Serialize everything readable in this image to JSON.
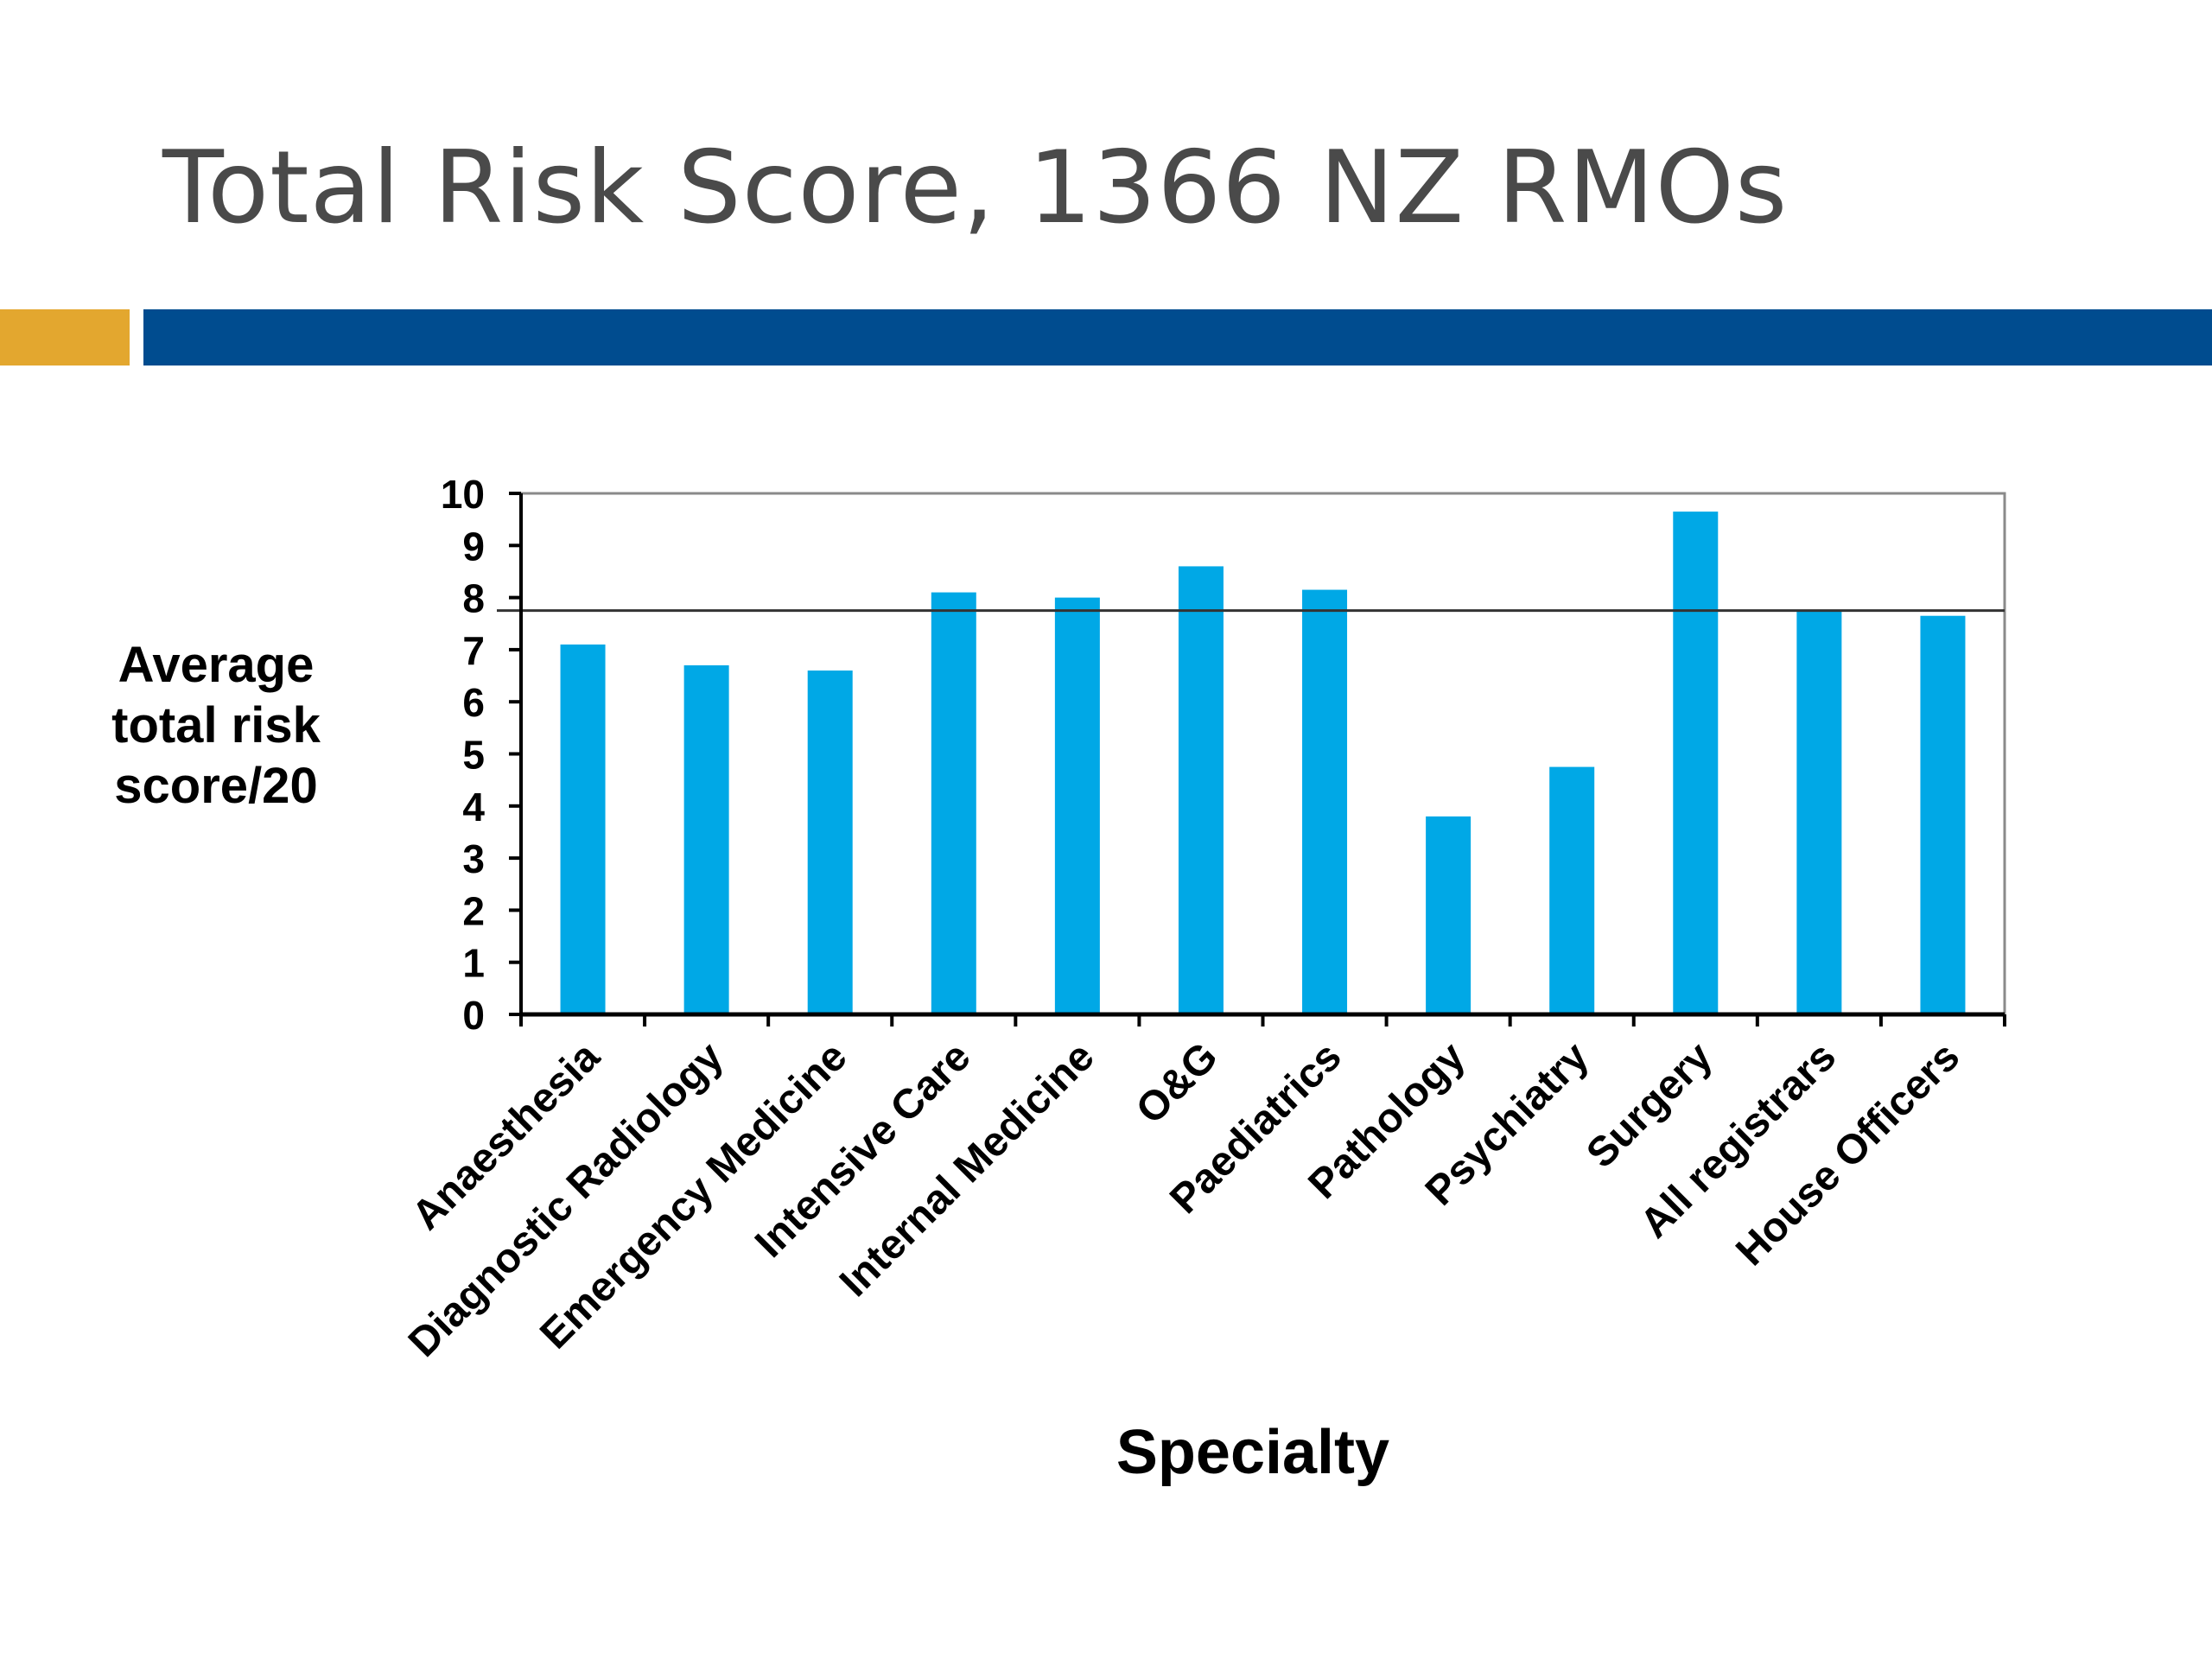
{
  "title": "Total Risk Score, 1366 NZ RMOs",
  "colors": {
    "accent_orange": "#E3A72F",
    "accent_blue": "#004C8F",
    "bar": "#00A8E6"
  },
  "chart_data": {
    "type": "bar",
    "categories": [
      "Anaesthesia",
      "Diagnostic Radiology",
      "Emergency Medicine",
      "Intensive Care",
      "Internal Medicine",
      "O&G",
      "Paediatrics",
      "Pathology",
      "Psychiatry",
      "Surgery",
      "All registrars",
      "House Officers"
    ],
    "values": [
      7.1,
      6.7,
      6.6,
      8.1,
      8.0,
      8.6,
      8.15,
      3.8,
      4.75,
      9.65,
      7.75,
      7.65
    ],
    "title": "",
    "xlabel": "Specialty",
    "ylabel": "Average\ntotal risk\nscore/20",
    "ylim": [
      0,
      10
    ],
    "yticks": [
      "0",
      "1",
      "2",
      "3",
      "4",
      "5",
      "6",
      "7",
      "8",
      "9",
      "10"
    ],
    "reference_line": 7.75,
    "grid": false
  }
}
